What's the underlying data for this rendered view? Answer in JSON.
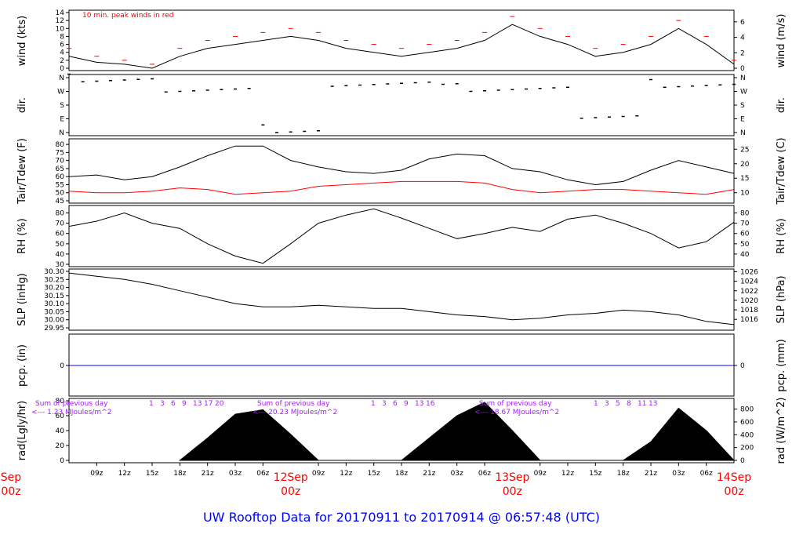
{
  "title": "UW Rooftop Data for 20170911  to  20170914 @ 06:57:48  (UTC)",
  "colors": {
    "data": "#000000",
    "dewpoint": "#ff0000",
    "precip": "#0000ff",
    "annotation": "#a020f0",
    "date": "#ff0000",
    "title": "#0000ff"
  },
  "x_axis": {
    "hour_labels": [
      "09z",
      "12z",
      "15z",
      "18z",
      "21z",
      "03z",
      "06z",
      "09z",
      "12z",
      "15z",
      "18z",
      "21z",
      "03z",
      "06z",
      "09z",
      "12z",
      "15z",
      "18z",
      "21z",
      "03z",
      "06z"
    ],
    "dates": [
      {
        "day": "Sep",
        "hour": "00z"
      },
      {
        "day": "12Sep",
        "hour": "00z"
      },
      {
        "day": "13Sep",
        "hour": "00z"
      },
      {
        "day": "14Sep",
        "hour": "00z"
      }
    ]
  },
  "panels": {
    "wind": {
      "left_label": "wind (kts)",
      "right_label": "wind (m/s)",
      "note": "10 min. peak winds in red",
      "left_ticks": [
        "0",
        "2",
        "4",
        "6",
        "8",
        "10",
        "12",
        "14"
      ],
      "right_ticks": [
        "0",
        "2",
        "4",
        "6"
      ]
    },
    "dir": {
      "left_label": "dir.",
      "right_label": "dir.",
      "ticks": [
        "N",
        "E",
        "S",
        "W",
        "N"
      ]
    },
    "temp": {
      "left_label": "Tair/Tdew (F)",
      "right_label": "Tair/Tdew (C)",
      "left_ticks": [
        "45",
        "50",
        "55",
        "60",
        "65",
        "70",
        "75",
        "80"
      ],
      "right_ticks": [
        "10",
        "15",
        "20",
        "25"
      ]
    },
    "rh": {
      "left_label": "RH (%)",
      "right_label": "RH (%)",
      "left_ticks": [
        "30",
        "40",
        "50",
        "60",
        "70",
        "80"
      ],
      "right_ticks": [
        "40",
        "50",
        "60",
        "70",
        "80"
      ]
    },
    "slp": {
      "left_label": "SLP (inHg)",
      "right_label": "SLP (hPa)",
      "left_ticks": [
        "29.95",
        "30.00",
        "30.05",
        "30.10",
        "30.15",
        "30.20",
        "30.25",
        "30.30"
      ],
      "right_ticks": [
        "1016",
        "1018",
        "1020",
        "1022",
        "1024",
        "1026"
      ]
    },
    "pcp": {
      "left_label": "pcp. (in)",
      "right_label": "pcp. (mm)",
      "left_ticks": [
        "0"
      ],
      "right_ticks": [
        "0"
      ]
    },
    "rad": {
      "left_label": "rad(Lgly/hr)",
      "right_label": "rad (W/m^2)",
      "left_ticks": [
        "0",
        "20",
        "40",
        "60",
        "80"
      ],
      "right_ticks": [
        "0",
        "200",
        "400",
        "600",
        "800"
      ],
      "daily_sums": [
        {
          "line1": "Sum of previous day",
          "line2": "<--- 1.23 MJoules/m^2"
        },
        {
          "line1": "Sum of previous day",
          "line2": "<--- 20.23 MJoules/m^2"
        },
        {
          "line1": "Sum of previous day",
          "line2": "<--- 18.67 MJoules/m^2"
        }
      ],
      "hour_marks": [
        [
          "1",
          "3",
          "6",
          "9",
          "13",
          "17",
          "20"
        ],
        [
          "1",
          "3",
          "6",
          "9",
          "13",
          "16"
        ],
        [
          "1",
          "3",
          "5",
          "8",
          "11",
          "13"
        ]
      ]
    }
  },
  "chart_data": [
    {
      "type": "line",
      "panel": "wind",
      "ylabel": "wind (kts)",
      "ylim": [
        0,
        14
      ],
      "x": [
        0,
        3,
        6,
        9,
        12,
        15,
        18,
        21,
        24,
        27,
        30,
        33,
        36,
        39,
        42,
        45,
        48,
        51,
        54,
        57,
        60,
        63,
        66,
        69,
        72
      ],
      "series": [
        {
          "name": "wind",
          "values": [
            3,
            1.5,
            1,
            0,
            3,
            5,
            6,
            7,
            8,
            7,
            5,
            4,
            3,
            4,
            5,
            7,
            11,
            8,
            6,
            3,
            4,
            6,
            10,
            6,
            1
          ]
        },
        {
          "name": "peak",
          "values": [
            5,
            3,
            2,
            1,
            5,
            7,
            8,
            9,
            10,
            9,
            7,
            6,
            5,
            6,
            7,
            9,
            13,
            10,
            8,
            5,
            6,
            8,
            12,
            8,
            2
          ]
        }
      ]
    },
    {
      "type": "line",
      "panel": "temp",
      "ylabel": "Tair/Tdew (F)",
      "ylim": [
        45,
        82
      ],
      "x": [
        0,
        3,
        6,
        9,
        12,
        15,
        18,
        21,
        24,
        27,
        30,
        33,
        36,
        39,
        42,
        45,
        48,
        51,
        54,
        57,
        60,
        63,
        66,
        69,
        72
      ],
      "series": [
        {
          "name": "Tair",
          "values": [
            60,
            61,
            58,
            60,
            66,
            73,
            79,
            79,
            70,
            66,
            63,
            62,
            64,
            71,
            74,
            73,
            65,
            63,
            58,
            55,
            57,
            64,
            70,
            66,
            62
          ]
        },
        {
          "name": "Tdew",
          "values": [
            51,
            50,
            50,
            51,
            53,
            52,
            49,
            50,
            51,
            54,
            55,
            56,
            57,
            57,
            57,
            56,
            52,
            50,
            51,
            52,
            52,
            51,
            50,
            49,
            52
          ]
        }
      ]
    },
    {
      "type": "line",
      "panel": "rh",
      "ylabel": "RH (%)",
      "ylim": [
        30,
        85
      ],
      "x": [
        0,
        3,
        6,
        9,
        12,
        15,
        18,
        21,
        24,
        27,
        30,
        33,
        36,
        39,
        42,
        45,
        48,
        51,
        54,
        57,
        60,
        63,
        66,
        69,
        72
      ],
      "series": [
        {
          "name": "RH",
          "values": [
            67,
            72,
            80,
            70,
            65,
            50,
            38,
            31,
            50,
            70,
            78,
            84,
            75,
            65,
            55,
            60,
            66,
            62,
            74,
            78,
            70,
            60,
            46,
            52,
            71
          ]
        }
      ]
    },
    {
      "type": "line",
      "panel": "slp",
      "ylabel": "SLP (inHg)",
      "ylim": [
        29.95,
        30.3
      ],
      "x": [
        0,
        3,
        6,
        9,
        12,
        15,
        18,
        21,
        24,
        27,
        30,
        33,
        36,
        39,
        42,
        45,
        48,
        51,
        54,
        57,
        60,
        63,
        66,
        69,
        72
      ],
      "series": [
        {
          "name": "SLP",
          "values": [
            30.29,
            30.27,
            30.25,
            30.22,
            30.18,
            30.14,
            30.1,
            30.08,
            30.08,
            30.09,
            30.08,
            30.07,
            30.07,
            30.05,
            30.03,
            30.02,
            30.0,
            30.01,
            30.03,
            30.04,
            30.06,
            30.05,
            30.03,
            29.99,
            29.97
          ]
        }
      ]
    },
    {
      "type": "area",
      "panel": "rad",
      "ylabel": "rad(Lgly/hr)",
      "ylim": [
        0,
        80
      ],
      "x": [
        12,
        15,
        18,
        21,
        24,
        27,
        36,
        39,
        42,
        45,
        48,
        51,
        60,
        63,
        66,
        69,
        72
      ],
      "series": [
        {
          "name": "rad",
          "values": [
            0,
            30,
            62,
            68,
            35,
            0,
            0,
            30,
            60,
            78,
            40,
            0,
            0,
            25,
            70,
            40,
            0
          ]
        }
      ]
    }
  ]
}
